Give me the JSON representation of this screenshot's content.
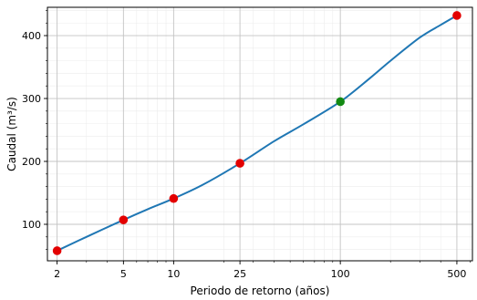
{
  "chart_data": {
    "type": "line",
    "title": "",
    "xlabel": "Periodo de retorno (años)",
    "ylabel": "Caudal (m³/s)",
    "x_scale": "log",
    "xlim": [
      1.75,
      620
    ],
    "ylim": [
      42,
      445
    ],
    "x_ticks": [
      2,
      5,
      10,
      25,
      100,
      500
    ],
    "x_tick_labels": [
      "2",
      "5",
      "10",
      "25",
      "100",
      "500"
    ],
    "y_ticks": [
      100,
      200,
      300,
      400
    ],
    "y_tick_labels": [
      "100",
      "200",
      "300",
      "400"
    ],
    "grid": true,
    "minor_grid": true,
    "curve": {
      "x": [
        2,
        3,
        5,
        7,
        10,
        15,
        25,
        40,
        60,
        100,
        150,
        200,
        300,
        400,
        500
      ],
      "y": [
        58,
        80,
        107,
        124,
        141,
        163,
        197,
        232,
        259,
        295,
        332,
        360,
        397,
        417,
        432
      ]
    },
    "series": [
      {
        "color": "#e30000",
        "x": [
          2,
          5,
          10,
          25,
          500
        ],
        "y": [
          58,
          107,
          141,
          197,
          432
        ]
      },
      {
        "color": "#138a13",
        "x": [
          100
        ],
        "y": [
          295
        ]
      }
    ],
    "line_color": "#1f77b4"
  }
}
